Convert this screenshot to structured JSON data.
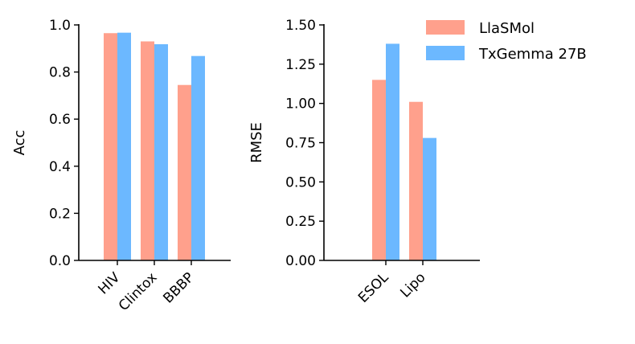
{
  "legend": {
    "placement": "top-right",
    "items": [
      {
        "label": "LlaSMol",
        "color": "#FFA08C"
      },
      {
        "label": "TxGemma 27B",
        "color": "#6CB8FF"
      }
    ]
  },
  "chart_data": [
    {
      "type": "bar",
      "categories": [
        "HIV",
        "Clintox",
        "BBBP"
      ],
      "series": [
        {
          "name": "LlaSMol",
          "values": [
            0.965,
            0.93,
            0.745
          ]
        },
        {
          "name": "TxGemma 27B",
          "values": [
            0.967,
            0.918,
            0.868
          ]
        }
      ],
      "ylabel": "Acc",
      "xlabel": "",
      "ylim": [
        0.0,
        1.0
      ],
      "yticks": [
        "0.0",
        "0.2",
        "0.4",
        "0.6",
        "0.8",
        "1.0"
      ],
      "grid": false
    },
    {
      "type": "bar",
      "categories": [
        "ESOL",
        "Lipo"
      ],
      "series": [
        {
          "name": "LlaSMol",
          "values": [
            1.15,
            1.01
          ]
        },
        {
          "name": "TxGemma 27B",
          "values": [
            1.38,
            0.78
          ]
        }
      ],
      "ylabel": "RMSE",
      "xlabel": "",
      "ylim": [
        0.0,
        1.5
      ],
      "yticks": [
        "0.00",
        "0.25",
        "0.50",
        "0.75",
        "1.00",
        "1.25",
        "1.50"
      ],
      "grid": false
    }
  ]
}
